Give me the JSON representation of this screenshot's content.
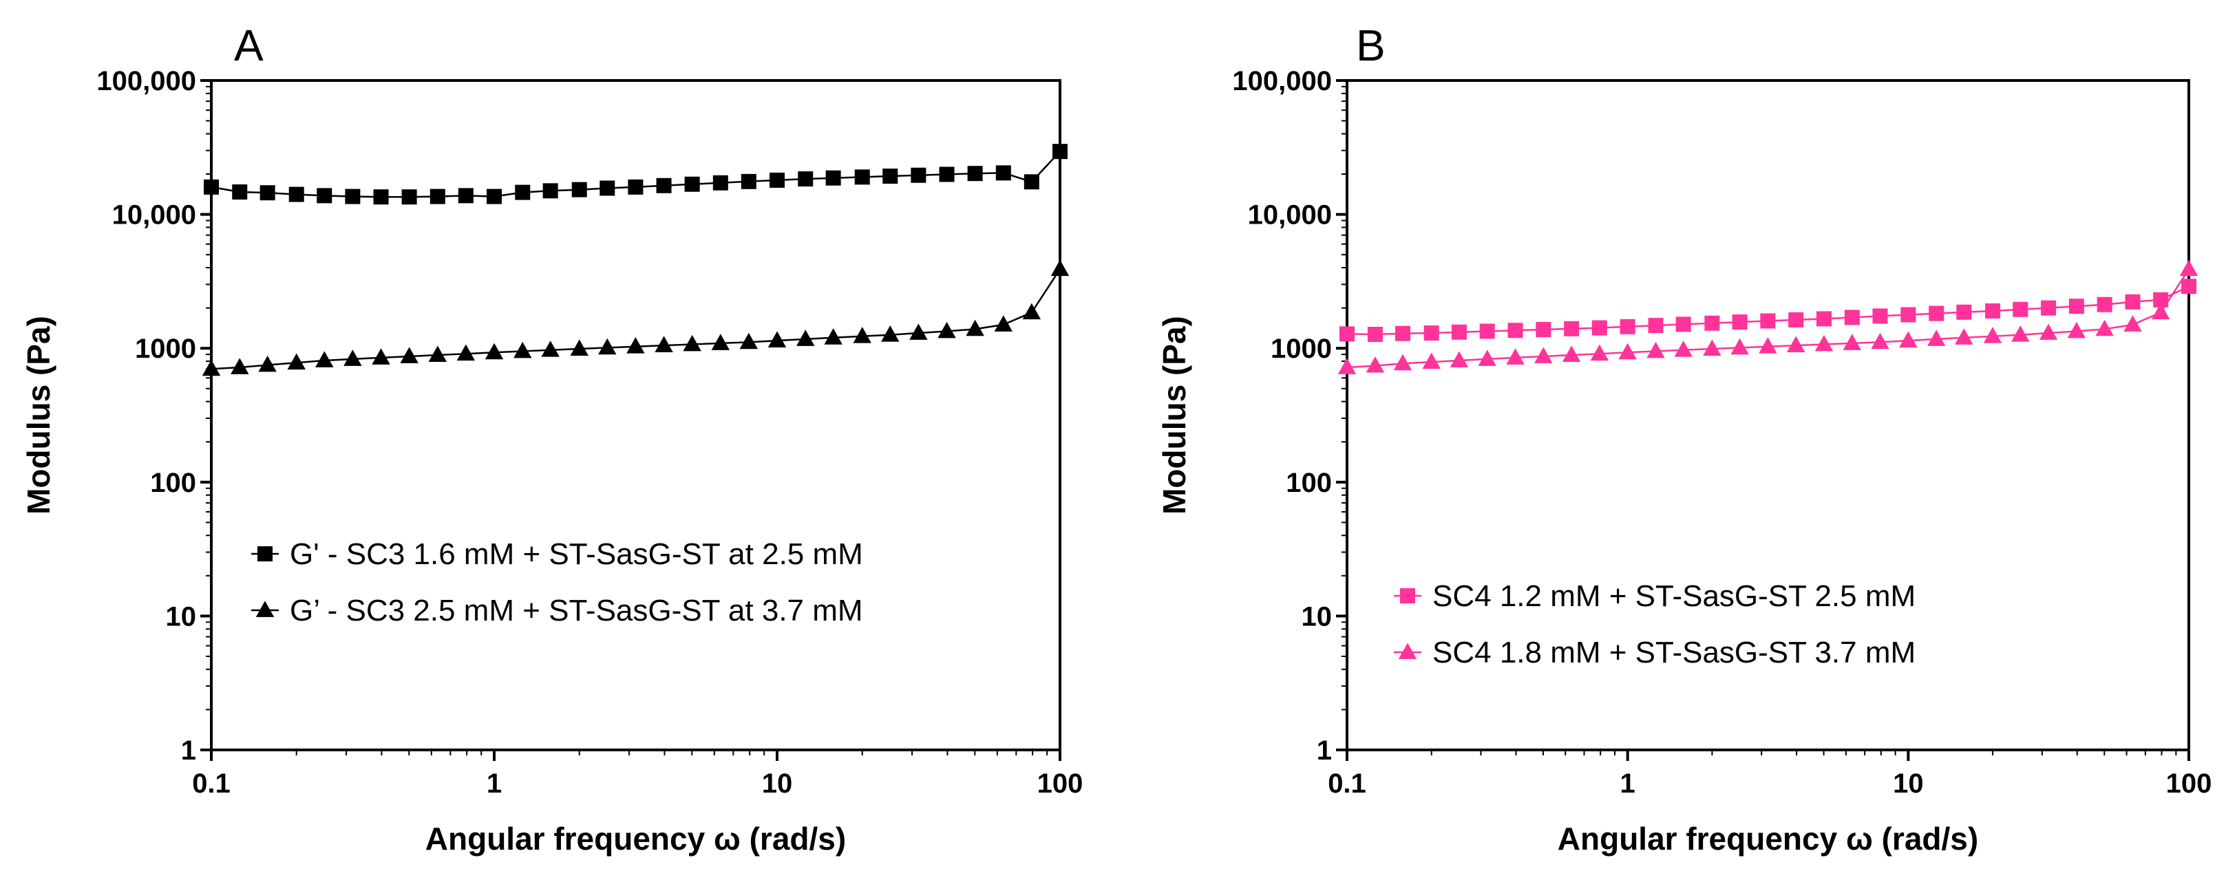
{
  "chart_data": [
    {
      "type": "line",
      "panel_label": "A",
      "xlabel": "Angular frequency ω (rad/s)",
      "ylabel": "Modulus (Pa)",
      "xscale": "log",
      "yscale": "log",
      "xlim": [
        0.1,
        100
      ],
      "ylim": [
        1,
        100000
      ],
      "xticks": [
        0.1,
        1,
        10,
        100
      ],
      "xtick_labels": [
        "0.1",
        "1",
        "10",
        "100"
      ],
      "yticks": [
        1,
        10,
        100,
        1000,
        10000,
        100000
      ],
      "ytick_labels": [
        "1",
        "10",
        "100",
        "1000",
        "10,000",
        "100,000"
      ],
      "legend_position": "center-left",
      "series": [
        {
          "name": "G' - SC3 1.6 mM + ST-SasG-ST at 2.5 mM",
          "marker": "square",
          "color": "#000000",
          "x": [
            0.1,
            0.126,
            0.158,
            0.2,
            0.251,
            0.316,
            0.398,
            0.501,
            0.631,
            0.794,
            1,
            1.26,
            1.58,
            2,
            2.51,
            3.16,
            3.98,
            5.01,
            6.31,
            7.94,
            10,
            12.6,
            15.8,
            20,
            25.1,
            31.6,
            39.8,
            50.1,
            63.1,
            79.4,
            100
          ],
          "y": [
            16000,
            14700,
            14500,
            14100,
            13800,
            13600,
            13500,
            13500,
            13600,
            13800,
            13600,
            14600,
            15000,
            15300,
            15700,
            16000,
            16400,
            16800,
            17200,
            17600,
            18000,
            18400,
            18700,
            19000,
            19300,
            19600,
            19900,
            20200,
            20400,
            17500,
            29500
          ]
        },
        {
          "name": "G’ - SC3 2.5 mM + ST-SasG-ST at 3.7 mM",
          "marker": "triangle",
          "color": "#000000",
          "x": [
            0.1,
            0.126,
            0.158,
            0.2,
            0.251,
            0.316,
            0.398,
            0.501,
            0.631,
            0.794,
            1,
            1.26,
            1.58,
            2,
            2.51,
            3.16,
            3.98,
            5.01,
            6.31,
            7.94,
            10,
            12.6,
            15.8,
            20,
            25.1,
            31.6,
            39.8,
            50.1,
            63.1,
            79.4,
            100
          ],
          "y": [
            700,
            720,
            750,
            780,
            810,
            830,
            850,
            870,
            890,
            910,
            930,
            950,
            970,
            990,
            1010,
            1030,
            1050,
            1070,
            1090,
            1110,
            1140,
            1170,
            1200,
            1230,
            1260,
            1300,
            1340,
            1390,
            1500,
            1850,
            3900
          ]
        }
      ]
    },
    {
      "type": "line",
      "panel_label": "B",
      "xlabel": "Angular frequency ω (rad/s)",
      "ylabel": "Modulus (Pa)",
      "xscale": "log",
      "yscale": "log",
      "xlim": [
        0.1,
        100
      ],
      "ylim": [
        1,
        100000
      ],
      "xticks": [
        0.1,
        1,
        10,
        100
      ],
      "xtick_labels": [
        "0.1",
        "1",
        "10",
        "100"
      ],
      "yticks": [
        1,
        10,
        100,
        1000,
        10000,
        100000
      ],
      "ytick_labels": [
        "1",
        "10",
        "100",
        "1000",
        "10,000",
        "100,000"
      ],
      "legend_position": "center-left",
      "series": [
        {
          "name": "SC4 1.2 mM + ST-SasG-ST 2.5 mM",
          "marker": "square",
          "color": "#ff3399",
          "x": [
            0.1,
            0.126,
            0.158,
            0.2,
            0.251,
            0.316,
            0.398,
            0.501,
            0.631,
            0.794,
            1,
            1.26,
            1.58,
            2,
            2.51,
            3.16,
            3.98,
            5.01,
            6.31,
            7.94,
            10,
            12.6,
            15.8,
            20,
            25.1,
            31.6,
            39.8,
            50.1,
            63.1,
            79.4,
            100
          ],
          "y": [
            1280,
            1270,
            1290,
            1300,
            1320,
            1340,
            1360,
            1380,
            1400,
            1420,
            1450,
            1480,
            1510,
            1540,
            1570,
            1600,
            1630,
            1660,
            1700,
            1740,
            1780,
            1820,
            1860,
            1900,
            1950,
            2000,
            2060,
            2120,
            2220,
            2300,
            2900
          ]
        },
        {
          "name": "SC4 1.8 mM + ST-SasG-ST 3.7 mM",
          "marker": "triangle",
          "color": "#ff3399",
          "x": [
            0.1,
            0.126,
            0.158,
            0.2,
            0.251,
            0.316,
            0.398,
            0.501,
            0.631,
            0.794,
            1,
            1.26,
            1.58,
            2,
            2.51,
            3.16,
            3.98,
            5.01,
            6.31,
            7.94,
            10,
            12.6,
            15.8,
            20,
            25.1,
            31.6,
            39.8,
            50.1,
            63.1,
            79.4,
            100
          ],
          "y": [
            720,
            740,
            770,
            790,
            810,
            830,
            850,
            870,
            890,
            910,
            930,
            950,
            970,
            990,
            1010,
            1030,
            1050,
            1070,
            1090,
            1110,
            1140,
            1170,
            1200,
            1230,
            1260,
            1300,
            1340,
            1390,
            1500,
            1850,
            3900
          ]
        }
      ]
    }
  ]
}
